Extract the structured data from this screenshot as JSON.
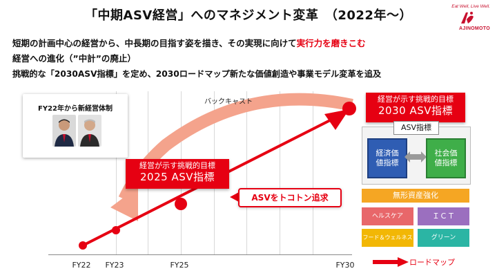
{
  "title": "「中期ASV経営」へのマネジメント変革　（2022年～）",
  "logo": {
    "tagline": "Eat Well, Live Well.",
    "name": "AJINOMOTO",
    "brand_color": "#c8102e"
  },
  "bullets": {
    "line1_prefix": "短期の計画中心の経営から、中長期の目指す姿を描き、その実現に向けて",
    "line1_highlight": "実行力を磨きこむ",
    "line2": "経営への進化（”中計”の廃止）",
    "line3": "挑戦的な「2030ASV指標」を定め、2030ロードマップ新たな価値創造や事業モデル変革を追及"
  },
  "executive_box": {
    "label": "FY22年から新経営体制"
  },
  "backcast_label": "バックキャスト",
  "goal_2030": {
    "line1": "経営が示す挑戦的目標",
    "line2": "2030 ASV指標"
  },
  "goal_2025": {
    "line1": "経営が示す挑戦的目標",
    "line2": "2025 ASV指標"
  },
  "pursuit_label": "ASVをトコトン追求",
  "asv_panel": {
    "title": "ASV指標",
    "economic": "経済価値指標",
    "social": "社会価値指標"
  },
  "intangible": {
    "title": "無形資産強化",
    "tiles": [
      {
        "label": "ヘルスケア",
        "color": "#e8676a"
      },
      {
        "label": "ＩＣＴ",
        "color": "#9b6fbf"
      },
      {
        "label": "フード＆ウェルネス",
        "color": "#f2b705"
      },
      {
        "label": "グリーン",
        "color": "#2bb5a4"
      }
    ]
  },
  "x_axis": {
    "ticks": [
      "FY22",
      "FY23",
      "FY25",
      "FY30"
    ]
  },
  "roadmap_label": "ロードマップ",
  "colors": {
    "accent_red": "#e60012",
    "arc_salmon": "#f4a38c",
    "asv_blue": "#2f5db3",
    "asv_green": "#3fae49",
    "intangible_orange": "#f5a623"
  }
}
